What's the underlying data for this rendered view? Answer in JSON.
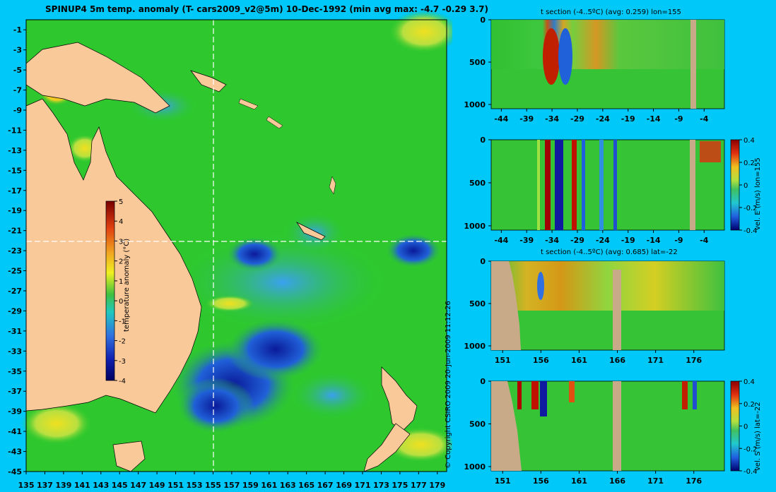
{
  "main_title": "SPINUP4 5m temp. anomaly (T- cars2009_v2@5m) 10-Dec-1992 (min avg max: -4.7 -0.29 3.7)",
  "copyright": "© Copyright CSIRO 2009   20-Jun-2009 11:12:26",
  "colors": {
    "background": "#00c8f8",
    "land": "#f9c99a",
    "section_land": "#c8aa88",
    "ocean": "#2ec82e"
  },
  "chart_data": [
    {
      "type": "heatmap",
      "name": "map",
      "title": "SPINUP4 5m temp. anomaly (T- cars2009_v2@5m) 10-Dec-1992 (min avg max: -4.7 -0.29 3.7)",
      "xlim": [
        135,
        180
      ],
      "ylim": [
        -45,
        0
      ],
      "x_ticks": [
        "135",
        "137",
        "139",
        "141",
        "143",
        "145",
        "147",
        "149",
        "151",
        "153",
        "155",
        "157",
        "159",
        "161",
        "163",
        "165",
        "167",
        "169",
        "171",
        "173",
        "175",
        "177",
        "179"
      ],
      "y_ticks": [
        "-1",
        "-3",
        "-5",
        "-7",
        "-9",
        "-11",
        "-13",
        "-15",
        "-17",
        "-19",
        "-21",
        "-23",
        "-25",
        "-27",
        "-29",
        "-31",
        "-33",
        "-35",
        "-37",
        "-39",
        "-41",
        "-43",
        "-45"
      ],
      "crosshair": {
        "lon": 155,
        "lat": -22
      },
      "colorbar": {
        "label": "temperature anomaly (°C)",
        "ticks": [
          "5",
          "4",
          "3",
          "2",
          "1",
          "0",
          "-1",
          "-2",
          "-3",
          "-4"
        ],
        "range": [
          -4,
          5
        ]
      },
      "summary": {
        "min": -4.7,
        "avg": -0.29,
        "max": 3.7
      }
    },
    {
      "type": "heatmap",
      "name": "t-section-lon",
      "title": "t section (-4..5ºC) (avg: 0.259) lon=155",
      "x_ticks": [
        "-44",
        "-39",
        "-34",
        "-29",
        "-24",
        "-19",
        "-14",
        "-9",
        "-4"
      ],
      "y_ticks": [
        "0",
        "500",
        "1000"
      ],
      "xlim": [
        -46,
        0
      ],
      "ylim": [
        1050,
        0
      ]
    },
    {
      "type": "heatmap",
      "name": "vel-e-section-lon",
      "title": "",
      "x_ticks": [
        "-44",
        "-39",
        "-34",
        "-29",
        "-24",
        "-19",
        "-14",
        "-9",
        "-4"
      ],
      "y_ticks": [
        "0",
        "500",
        "1000"
      ],
      "colorbar": {
        "label": "vel. E (m/s) lon=155",
        "ticks": [
          "0.4",
          "0.2",
          "0",
          "-0.2",
          "-0.4"
        ],
        "range": [
          -0.4,
          0.4
        ]
      },
      "xlim": [
        -46,
        0
      ],
      "ylim": [
        1050,
        0
      ]
    },
    {
      "type": "heatmap",
      "name": "t-section-lat",
      "title": "t section (-4..5ºC) (avg: 0.685) lat=-22",
      "x_ticks": [
        "151",
        "156",
        "161",
        "166",
        "171",
        "176"
      ],
      "y_ticks": [
        "0",
        "500",
        "1000"
      ],
      "xlim": [
        149.5,
        180
      ],
      "ylim": [
        1050,
        0
      ]
    },
    {
      "type": "heatmap",
      "name": "vel-s-section-lat",
      "title": "",
      "x_ticks": [
        "151",
        "156",
        "161",
        "166",
        "171",
        "176"
      ],
      "y_ticks": [
        "0",
        "500",
        "1000"
      ],
      "colorbar": {
        "label": "vel. S (m/s) lat=-22",
        "ticks": [
          "0.4",
          "0.2",
          "0",
          "-0.2",
          "-0.4"
        ],
        "range": [
          -0.4,
          0.4
        ]
      },
      "xlim": [
        149.5,
        180
      ],
      "ylim": [
        1050,
        0
      ]
    }
  ]
}
